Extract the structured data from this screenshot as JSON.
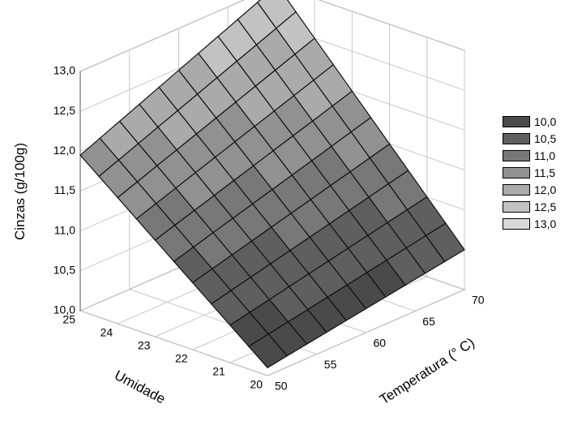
{
  "chart_data": {
    "type": "surface3d",
    "title": "",
    "xlabel": "Temperatura (° C)",
    "ylabel": "Umidade",
    "zlabel": "Cinzas (g/100g)",
    "x_ticks": [
      "50",
      "55",
      "60",
      "65",
      "70"
    ],
    "y_ticks": [
      "20",
      "21",
      "22",
      "23",
      "24",
      "25"
    ],
    "z_ticks": [
      "10,0",
      "10,5",
      "11,0",
      "11,5",
      "12,0",
      "12,5",
      "13,0"
    ],
    "xlim": [
      50,
      70
    ],
    "ylim": [
      20,
      25
    ],
    "zlim": [
      10,
      13
    ],
    "grid": true,
    "surface_corners": [
      {
        "x": 50,
        "y": 20,
        "z": 10.1
      },
      {
        "x": 70,
        "y": 20,
        "z": 10.5
      },
      {
        "x": 50,
        "y": 25,
        "z": 11.95
      },
      {
        "x": 70,
        "y": 25,
        "z": 13.0
      }
    ],
    "legend": {
      "position": "right",
      "entries": [
        {
          "label": "10,0",
          "color": "#4a4a4a"
        },
        {
          "label": "10,5",
          "color": "#5f5f5f"
        },
        {
          "label": "11,0",
          "color": "#787878"
        },
        {
          "label": "11,5",
          "color": "#919191"
        },
        {
          "label": "12,0",
          "color": "#aaaaaa"
        },
        {
          "label": "12,5",
          "color": "#c2c2c2"
        },
        {
          "label": "13,0",
          "color": "#d9d9d9"
        }
      ]
    }
  }
}
